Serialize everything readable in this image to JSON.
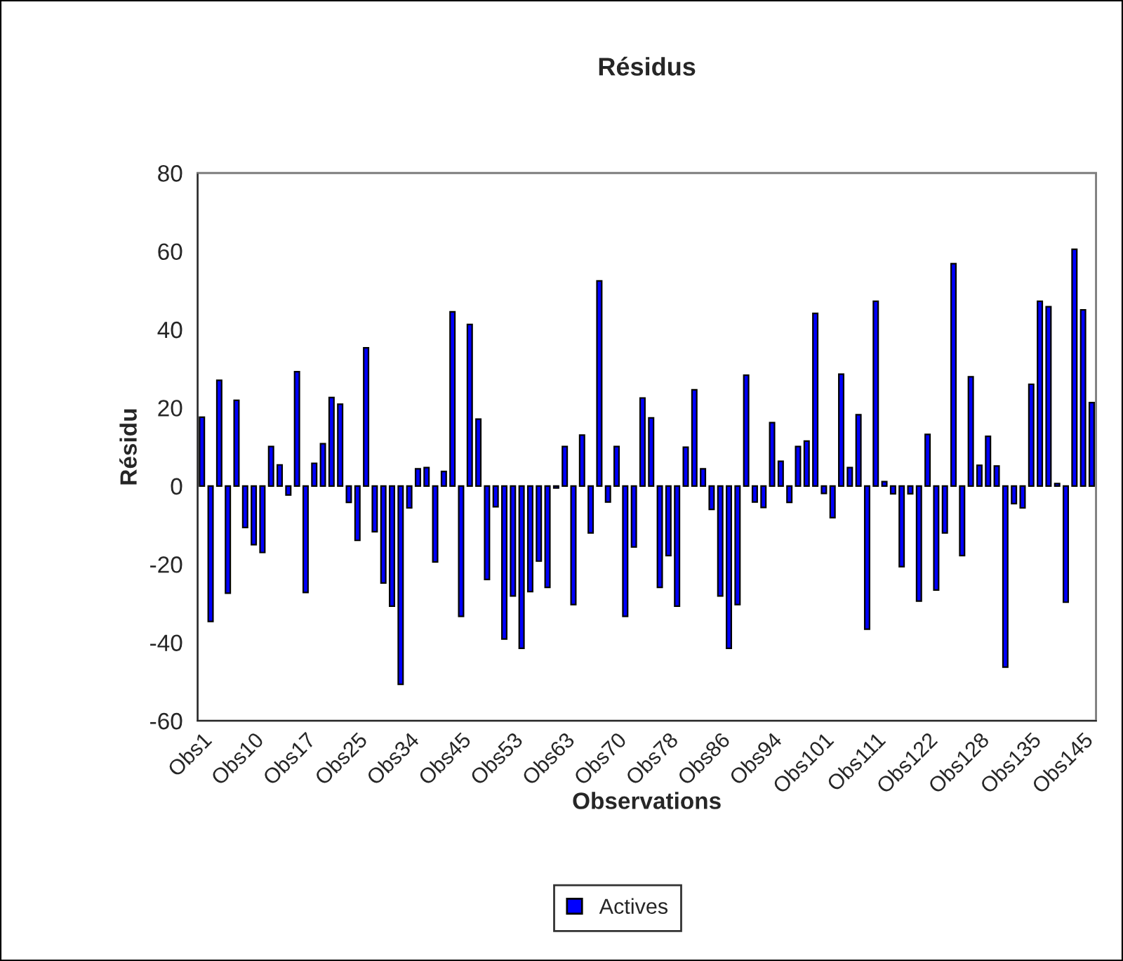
{
  "chart_data": {
    "type": "bar",
    "title": "Résidus",
    "xlabel": "Observations",
    "ylabel": "Résidu",
    "categories": [
      "Obs1",
      null,
      null,
      null,
      null,
      null,
      "Obs10",
      null,
      null,
      null,
      null,
      null,
      "Obs17",
      null,
      null,
      null,
      null,
      null,
      "Obs25",
      null,
      null,
      null,
      null,
      null,
      "Obs34",
      null,
      null,
      null,
      null,
      null,
      "Obs45",
      null,
      null,
      null,
      null,
      null,
      "Obs53",
      null,
      null,
      null,
      null,
      null,
      "Obs63",
      null,
      null,
      null,
      null,
      null,
      "Obs70",
      null,
      null,
      null,
      null,
      null,
      "Obs78",
      null,
      null,
      null,
      null,
      null,
      "Obs86",
      null,
      null,
      null,
      null,
      null,
      "Obs94",
      null,
      null,
      null,
      null,
      null,
      "Obs101",
      null,
      null,
      null,
      null,
      null,
      "Obs111",
      null,
      null,
      null,
      null,
      null,
      "Obs122",
      null,
      null,
      null,
      null,
      null,
      "Obs128",
      null,
      null,
      null,
      null,
      null,
      "Obs135",
      null,
      null,
      null,
      null,
      null,
      "Obs145",
      null
    ],
    "series": [
      {
        "name": "Actives",
        "color": "#0000ff",
        "values": [
          17.6,
          -34.6,
          27.0,
          -27.4,
          21.9,
          -10.6,
          -15.0,
          -17.0,
          10.1,
          5.4,
          -2.3,
          29.2,
          -27.2,
          5.8,
          10.8,
          22.6,
          20.9,
          -4.2,
          -13.9,
          35.3,
          -11.7,
          -24.8,
          -30.7,
          -50.7,
          -5.6,
          4.4,
          4.7,
          -19.4,
          3.7,
          44.5,
          -33.3,
          41.3,
          17.1,
          -23.9,
          -5.3,
          -39.1,
          -28.1,
          -41.5,
          -27.0,
          -19.2,
          -25.9,
          -0.5,
          10.1,
          -30.3,
          13.0,
          -12.0,
          52.4,
          -4.1,
          10.1,
          -33.3,
          -15.6,
          22.5,
          17.4,
          -25.9,
          -17.8,
          -30.7,
          9.9,
          24.6,
          4.4,
          -6.0,
          -28.1,
          -41.5,
          -30.3,
          28.3,
          -4.1,
          -5.5,
          16.2,
          6.3,
          -4.2,
          10.1,
          11.5,
          44.1,
          -1.9,
          -8.1,
          28.6,
          4.7,
          18.2,
          -36.6,
          47.2,
          1.1,
          -2.0,
          -20.6,
          -2.0,
          -29.4,
          13.2,
          -26.6,
          -12.0,
          56.8,
          -17.8,
          27.9,
          5.3,
          12.7,
          5.1,
          -46.3,
          -4.5,
          -5.6,
          26.0,
          47.2,
          45.8,
          0.6,
          -29.7,
          60.5,
          45.0,
          21.3
        ]
      }
    ],
    "ylim": [
      -60,
      80
    ],
    "yticks": [
      -60,
      -40,
      -20,
      0,
      20,
      40,
      60,
      80
    ],
    "grid": false,
    "legend": "bottom"
  }
}
